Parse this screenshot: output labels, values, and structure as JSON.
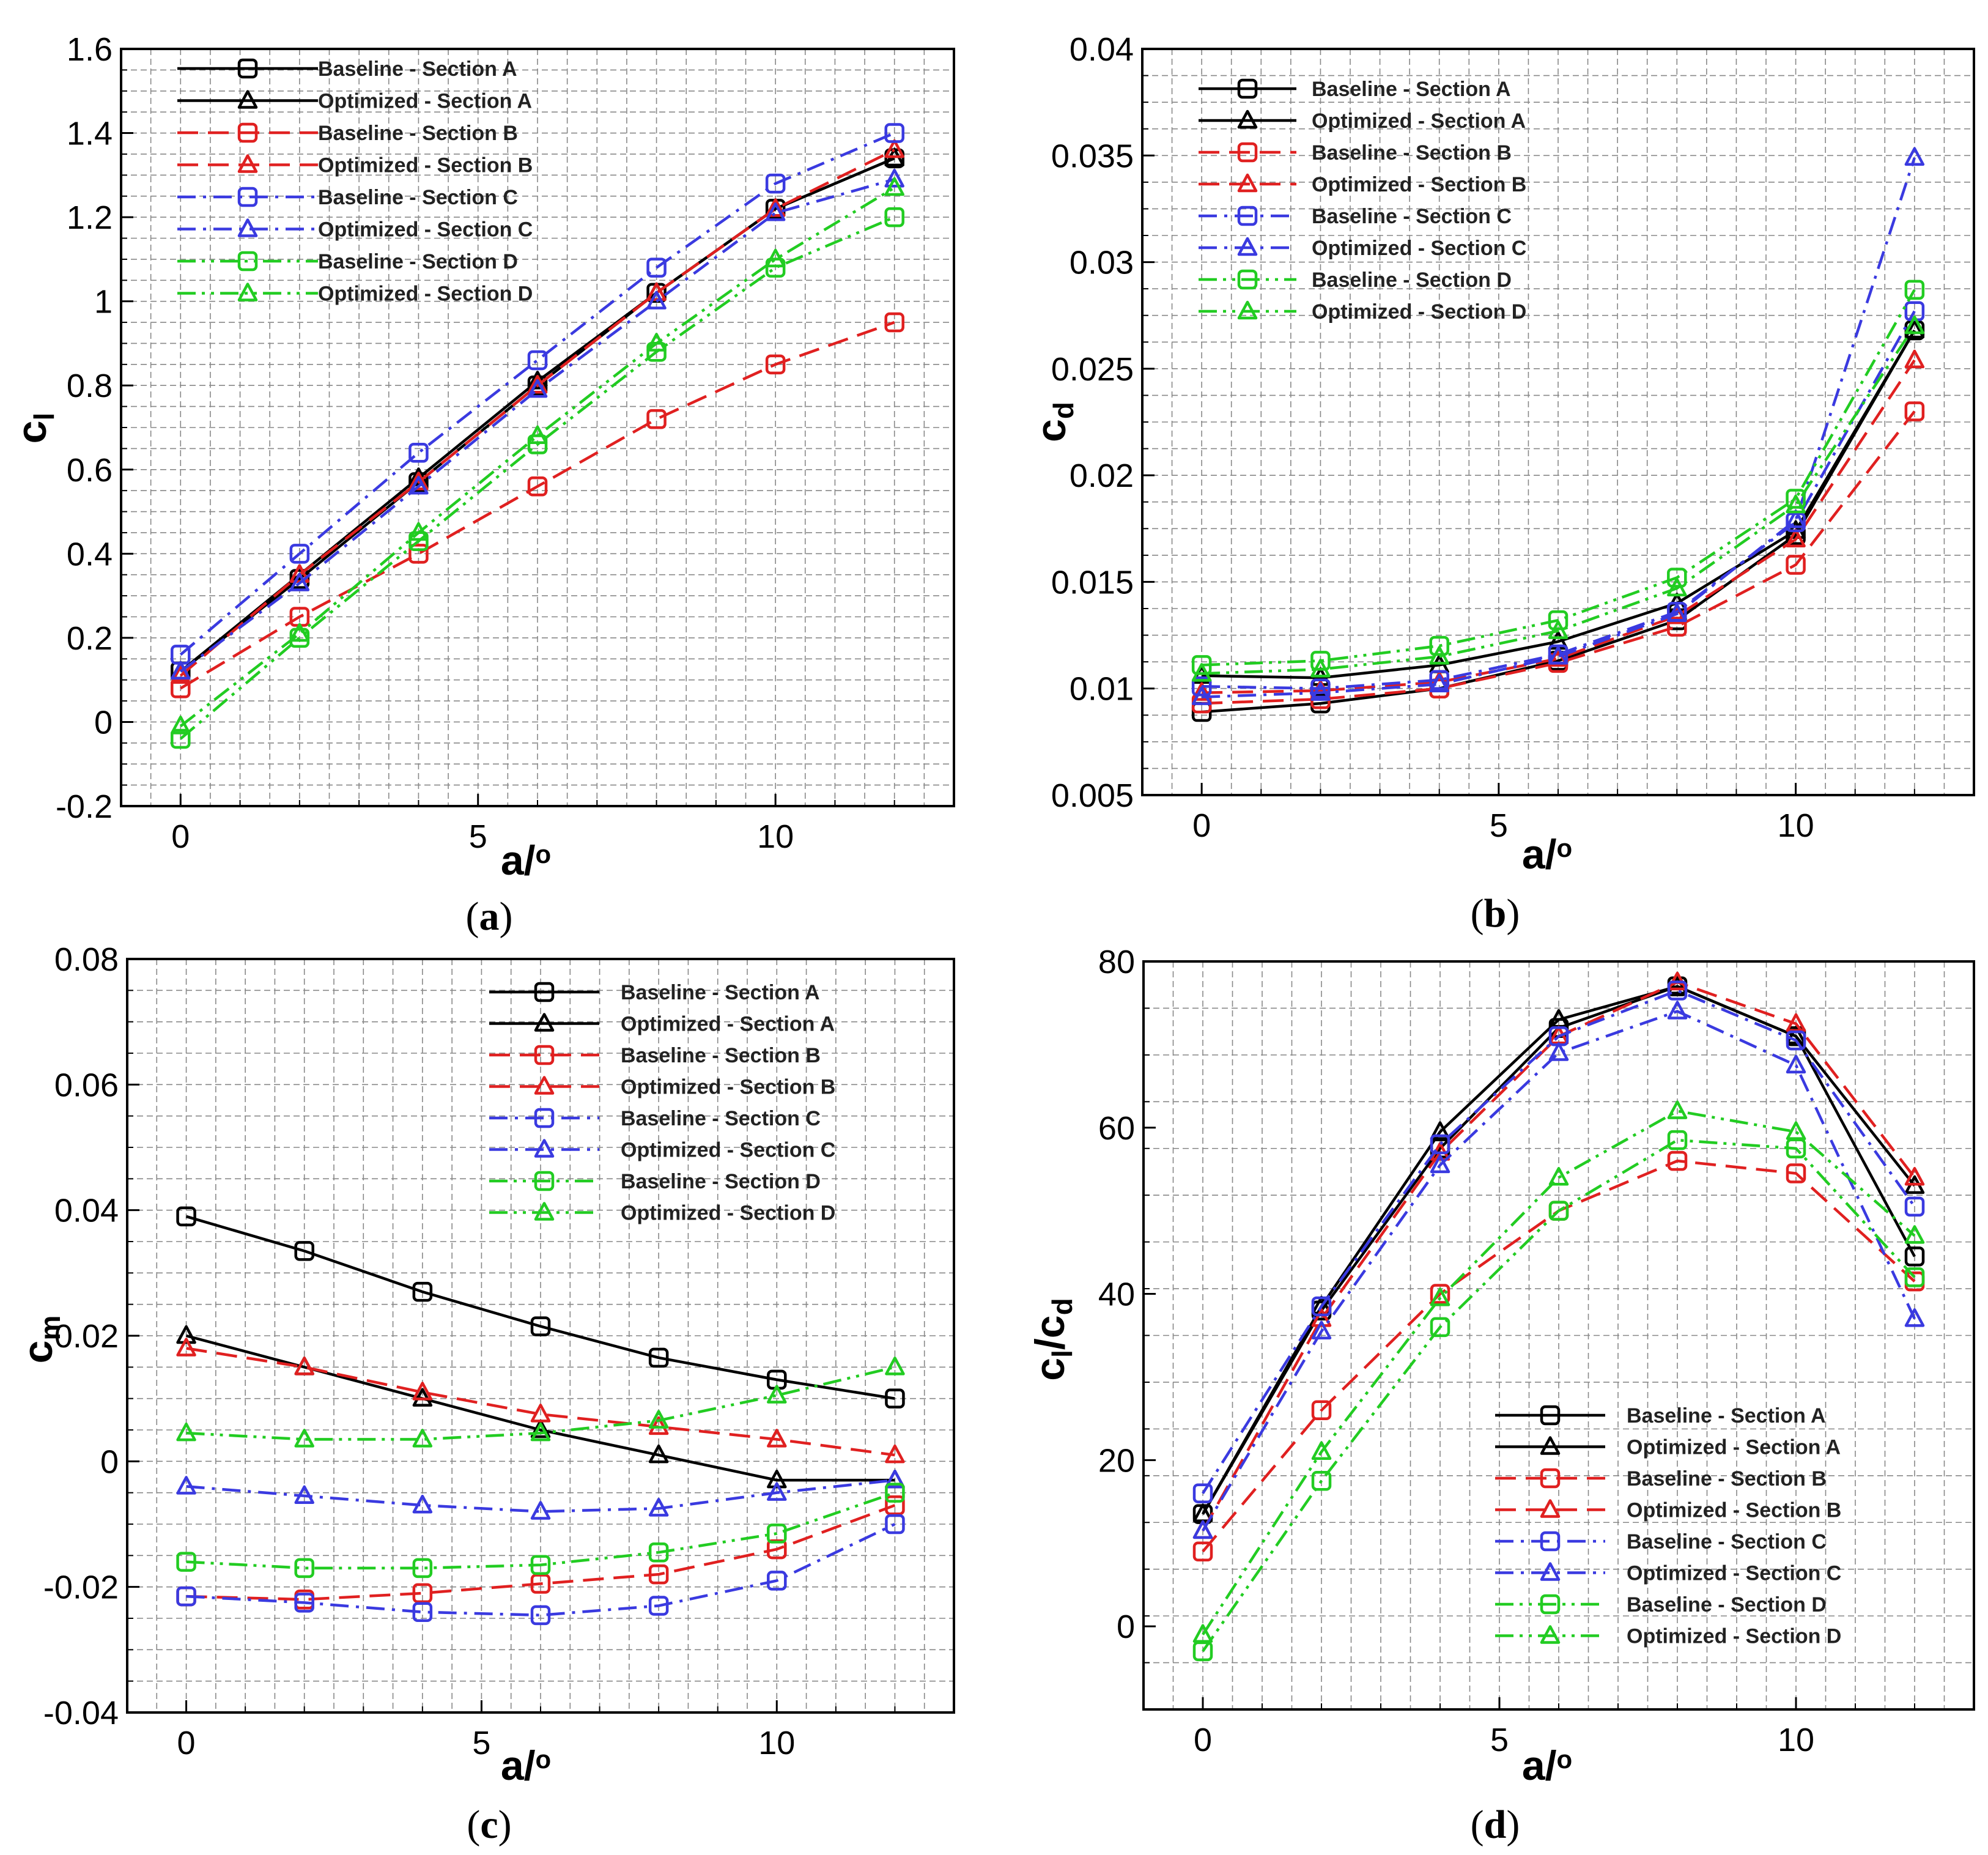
{
  "chart_data": [
    {
      "id": "a",
      "type": "line",
      "caption": "a",
      "xlabel": "a/o",
      "ylabel": "cl",
      "xlim": [
        -1,
        13
      ],
      "ylim": [
        -0.2,
        1.6
      ],
      "xticks": [
        "0",
        "5",
        "10"
      ],
      "xtick_values": [
        0,
        5,
        10
      ],
      "yticks": [
        "-0.2",
        "0",
        "0.2",
        "0.4",
        "0.6",
        "0.8",
        "1",
        "1.2",
        "1.4",
        "1.6"
      ],
      "ytick_values": [
        -0.2,
        0,
        0.2,
        0.4,
        0.6,
        0.8,
        1.0,
        1.2,
        1.4,
        1.6
      ],
      "grid": true,
      "legend_position": "top-left",
      "x": [
        0,
        2,
        4,
        6,
        8,
        10,
        12
      ],
      "series": [
        {
          "name": "Baseline - Section A",
          "values": [
            0.12,
            0.34,
            0.57,
            0.8,
            1.02,
            1.22,
            1.34
          ]
        },
        {
          "name": "Optimized - Section A",
          "values": [
            0.12,
            0.35,
            0.58,
            0.81,
            1.02,
            1.22,
            1.34
          ]
        },
        {
          "name": "Baseline - Section B",
          "values": [
            0.08,
            0.25,
            0.4,
            0.56,
            0.72,
            0.85,
            0.95
          ]
        },
        {
          "name": "Optimized - Section B",
          "values": [
            0.11,
            0.35,
            0.57,
            0.8,
            1.02,
            1.22,
            1.36
          ]
        },
        {
          "name": "Baseline - Section C",
          "values": [
            0.16,
            0.4,
            0.64,
            0.86,
            1.08,
            1.28,
            1.4
          ]
        },
        {
          "name": "Optimized - Section C",
          "values": [
            0.12,
            0.33,
            0.56,
            0.79,
            1.0,
            1.21,
            1.29
          ]
        },
        {
          "name": "Baseline - Section D",
          "values": [
            -0.04,
            0.2,
            0.43,
            0.66,
            0.88,
            1.08,
            1.2
          ]
        },
        {
          "name": "Optimized - Section D",
          "values": [
            -0.01,
            0.21,
            0.45,
            0.68,
            0.9,
            1.1,
            1.27
          ]
        }
      ]
    },
    {
      "id": "b",
      "type": "line",
      "caption": "b",
      "xlabel": "a/o",
      "ylabel": "cd",
      "xlim": [
        -1,
        13
      ],
      "ylim": [
        0.005,
        0.04
      ],
      "xticks": [
        "0",
        "5",
        "10"
      ],
      "xtick_values": [
        0,
        5,
        10
      ],
      "yticks": [
        "0.005",
        "0.01",
        "0.015",
        "0.02",
        "0.025",
        "0.03",
        "0.035",
        "0.04"
      ],
      "ytick_values": [
        0.005,
        0.01,
        0.015,
        0.02,
        0.025,
        0.03,
        0.035,
        0.04
      ],
      "grid": true,
      "legend_position": "top-left",
      "x": [
        0,
        2,
        4,
        6,
        8,
        10,
        12
      ],
      "series": [
        {
          "name": "Baseline - Section A",
          "values": [
            0.0089,
            0.0093,
            0.01,
            0.0113,
            0.0132,
            0.0172,
            0.0268
          ]
        },
        {
          "name": "Optimized - Section A",
          "values": [
            0.0106,
            0.0105,
            0.0111,
            0.0122,
            0.014,
            0.0174,
            0.0268
          ]
        },
        {
          "name": "Baseline - Section B",
          "values": [
            0.0093,
            0.0095,
            0.01,
            0.0112,
            0.0129,
            0.0158,
            0.023
          ]
        },
        {
          "name": "Optimized - Section B",
          "values": [
            0.0098,
            0.0099,
            0.0103,
            0.0114,
            0.0134,
            0.017,
            0.0254
          ]
        },
        {
          "name": "Baseline - Section C",
          "values": [
            0.0101,
            0.01,
            0.0104,
            0.0116,
            0.0136,
            0.0178,
            0.0277
          ]
        },
        {
          "name": "Optimized - Section C",
          "values": [
            0.0096,
            0.0098,
            0.0102,
            0.0115,
            0.0135,
            0.0179,
            0.0349
          ]
        },
        {
          "name": "Baseline - Section D",
          "values": [
            0.0111,
            0.0113,
            0.012,
            0.0132,
            0.0152,
            0.0189,
            0.0287
          ]
        },
        {
          "name": "Optimized - Section D",
          "values": [
            0.0107,
            0.0109,
            0.0115,
            0.0127,
            0.0147,
            0.0186,
            0.027
          ]
        }
      ]
    },
    {
      "id": "c",
      "type": "line",
      "caption": "c",
      "xlabel": "a/o",
      "ylabel": "cm",
      "xlim": [
        -1,
        13
      ],
      "ylim": [
        -0.04,
        0.08
      ],
      "xticks": [
        "0",
        "5",
        "10"
      ],
      "xtick_values": [
        0,
        5,
        10
      ],
      "yticks": [
        "-0.04",
        "-0.02",
        "0",
        "0.02",
        "0.04",
        "0.06",
        "0.08"
      ],
      "ytick_values": [
        -0.04,
        -0.02,
        0,
        0.02,
        0.04,
        0.06,
        0.08
      ],
      "grid": true,
      "legend_position": "top-right",
      "x": [
        0,
        2,
        4,
        6,
        8,
        10,
        12
      ],
      "series": [
        {
          "name": "Baseline - Section A",
          "values": [
            0.039,
            0.0335,
            0.027,
            0.0215,
            0.0165,
            0.013,
            0.01
          ]
        },
        {
          "name": "Optimized - Section A",
          "values": [
            0.02,
            0.015,
            0.01,
            0.005,
            0.001,
            -0.003,
            -0.003
          ]
        },
        {
          "name": "Baseline - Section B",
          "values": [
            -0.0215,
            -0.022,
            -0.021,
            -0.0195,
            -0.018,
            -0.014,
            -0.007
          ]
        },
        {
          "name": "Optimized - Section B",
          "values": [
            0.018,
            0.015,
            0.011,
            0.0075,
            0.0055,
            0.0035,
            0.001
          ]
        },
        {
          "name": "Baseline - Section C",
          "values": [
            -0.0215,
            -0.0225,
            -0.024,
            -0.0245,
            -0.023,
            -0.019,
            -0.01
          ]
        },
        {
          "name": "Optimized - Section C",
          "values": [
            -0.004,
            -0.0055,
            -0.007,
            -0.008,
            -0.0075,
            -0.005,
            -0.003
          ]
        },
        {
          "name": "Baseline - Section D",
          "values": [
            -0.016,
            -0.017,
            -0.017,
            -0.0165,
            -0.0145,
            -0.0115,
            -0.005
          ]
        },
        {
          "name": "Optimized - Section D",
          "values": [
            0.0045,
            0.0035,
            0.0035,
            0.0045,
            0.0065,
            0.0105,
            0.015
          ]
        }
      ]
    },
    {
      "id": "d",
      "type": "line",
      "caption": "d",
      "xlabel": "a/o",
      "ylabel": "cl/cd",
      "xlim": [
        -1,
        13
      ],
      "ylim": [
        -10,
        80
      ],
      "xticks": [
        "0",
        "5",
        "10"
      ],
      "xtick_values": [
        0,
        5,
        10
      ],
      "yticks": [
        "0",
        "20",
        "40",
        "60",
        "80"
      ],
      "ytick_values": [
        0,
        20,
        40,
        60,
        80
      ],
      "grid": true,
      "legend_position": "bottom-right",
      "x": [
        0,
        2,
        4,
        6,
        8,
        10,
        12
      ],
      "series": [
        {
          "name": "Baseline - Section A",
          "values": [
            13.5,
            38,
            57.5,
            72,
            77,
            71,
            44.5
          ]
        },
        {
          "name": "Optimized - Section A",
          "values": [
            13.5,
            38.5,
            59.5,
            73,
            77,
            71,
            53
          ]
        },
        {
          "name": "Baseline - Section B",
          "values": [
            9,
            26,
            40,
            50,
            56,
            54.5,
            41.5
          ]
        },
        {
          "name": "Optimized - Section B",
          "values": [
            11.5,
            37,
            57,
            71,
            77.5,
            72.5,
            54
          ]
        },
        {
          "name": "Baseline - Section C",
          "values": [
            16,
            38.5,
            58,
            71,
            76.5,
            70.5,
            50.5
          ]
        },
        {
          "name": "Optimized - Section C",
          "values": [
            11.5,
            35.5,
            55.5,
            69,
            74,
            67.5,
            37
          ]
        },
        {
          "name": "Baseline - Section D",
          "values": [
            -3,
            17.5,
            36,
            50,
            58.5,
            57.5,
            42
          ]
        },
        {
          "name": "Optimized - Section D",
          "values": [
            -1,
            21,
            39.5,
            54,
            62,
            59.5,
            47
          ]
        }
      ]
    }
  ],
  "styles": {
    "colors": {
      "Section A": "#000000",
      "Section B": "#e02020",
      "Section C": "#3a3ae0",
      "Section D": "#22cc22"
    },
    "grid_color": "#888888",
    "markers": {
      "Baseline": "square",
      "Optimized": "triangle"
    },
    "dash": {
      "Section A": "solid",
      "Section B": "dashed",
      "Section C": "dash-dot",
      "Section D": "dash-dot-dot"
    }
  }
}
